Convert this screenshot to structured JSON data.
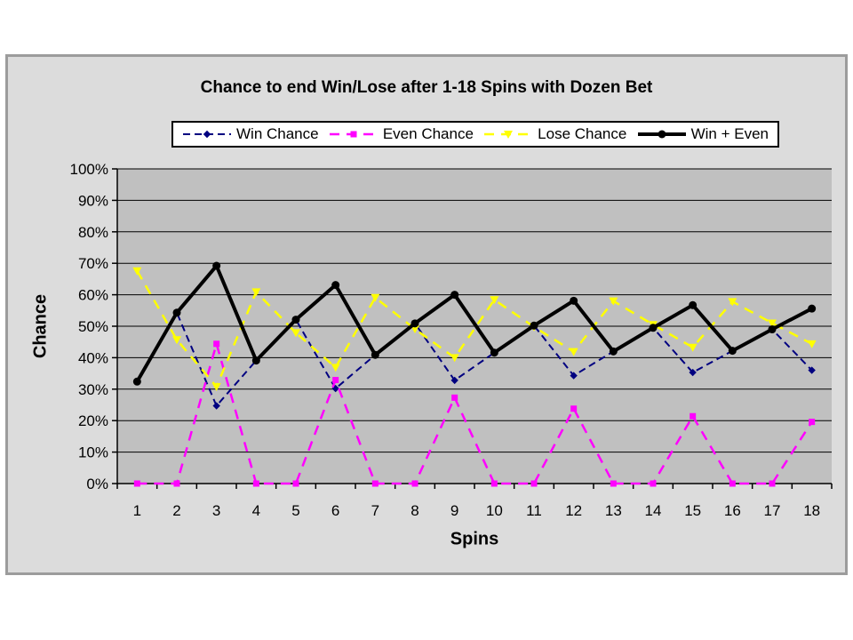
{
  "colors": {
    "page_bg": "#FFFFFF",
    "chart_bg": "#DCDCDC",
    "frame_border": "#9C9C9C",
    "plot_bg": "#C0C0C0",
    "gridline": "#000000",
    "axis": "#000000",
    "legend_bg": "#FFFFFF",
    "legend_border": "#000000",
    "text": "#000000"
  },
  "chart_data": {
    "type": "line",
    "title": "Chance to end Win/Lose after 1-18 Spins with Dozen Bet",
    "xlabel": "Spins",
    "ylabel": "Chance",
    "categories": [
      "1",
      "2",
      "3",
      "4",
      "5",
      "6",
      "7",
      "8",
      "9",
      "10",
      "11",
      "12",
      "13",
      "14",
      "15",
      "16",
      "17",
      "18"
    ],
    "ylim": [
      0,
      100
    ],
    "ytick_step": 10,
    "yticks": [
      "0%",
      "10%",
      "20%",
      "30%",
      "40%",
      "50%",
      "60%",
      "70%",
      "80%",
      "90%",
      "100%"
    ],
    "grid": "horizontal",
    "legend_position": "top",
    "series": [
      {
        "name": "Win Chance",
        "color": "#000080",
        "marker": "diamond",
        "dash": "dashed",
        "width": 2,
        "values": [
          32.4,
          54.3,
          24.7,
          39.1,
          52.1,
          30.2,
          40.9,
          50.9,
          32.8,
          41.6,
          50.2,
          34.3,
          42.0,
          49.5,
          35.3,
          42.2,
          49.0,
          36.0
        ]
      },
      {
        "name": "Even Chance",
        "color": "#FF00FF",
        "marker": "square",
        "dash": "dashed",
        "width": 2.5,
        "values": [
          0,
          0,
          44.4,
          0,
          0,
          32.9,
          0,
          0,
          27.3,
          0,
          0,
          23.8,
          0,
          0,
          21.4,
          0,
          0,
          19.6
        ]
      },
      {
        "name": "Lose Chance",
        "color": "#FFFF00",
        "marker": "triangle-down",
        "dash": "dashed",
        "width": 2.5,
        "values": [
          67.6,
          45.7,
          30.8,
          60.9,
          47.9,
          36.9,
          59.1,
          49.1,
          40.0,
          58.4,
          49.8,
          41.9,
          58.0,
          50.5,
          43.3,
          57.8,
          51.0,
          44.4
        ]
      },
      {
        "name": "Win + Even",
        "color": "#000000",
        "marker": "circle",
        "dash": "solid",
        "width": 4,
        "values": [
          32.4,
          54.3,
          69.2,
          39.1,
          52.1,
          63.1,
          40.9,
          50.9,
          60.0,
          41.6,
          50.2,
          58.1,
          42.0,
          49.5,
          56.7,
          42.2,
          49.0,
          55.6
        ]
      }
    ]
  }
}
